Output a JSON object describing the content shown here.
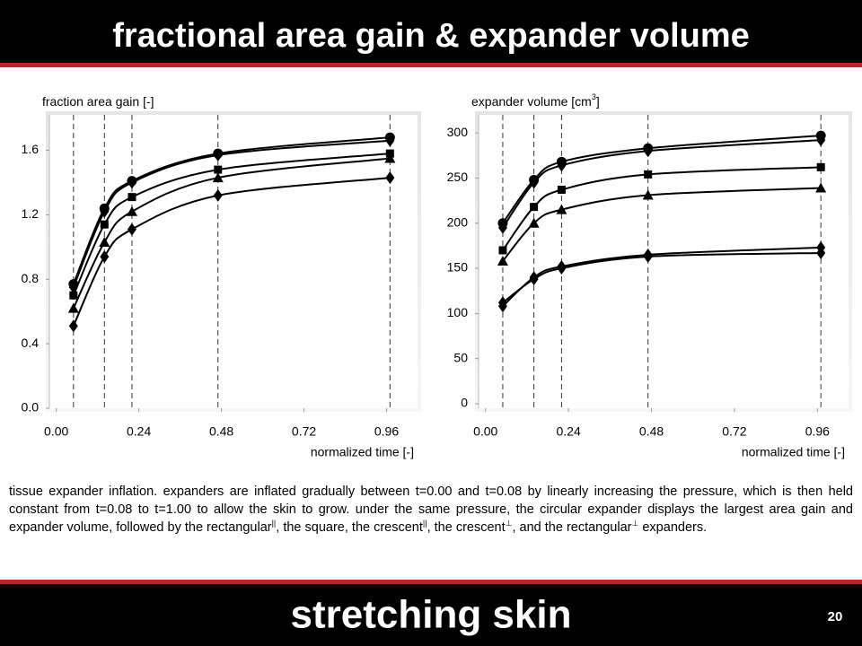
{
  "header": {
    "title": "fractional area gain & expander volume"
  },
  "chart_data": [
    {
      "type": "line",
      "y_label": [
        "fraction area gain [-]"
      ],
      "x_label": "normalized time [-]",
      "xlim": [
        -0.02,
        1.05
      ],
      "ylim": [
        0,
        1.82
      ],
      "xticks": [
        {
          "value": 0,
          "label": "0.00"
        },
        0.24,
        0.48,
        0.72,
        0.96
      ],
      "yticks": [
        {
          "value": 0,
          "label": "0.0"
        },
        0.4,
        0.8,
        1.2,
        1.6
      ],
      "x": [
        0.05,
        0.14,
        0.22,
        0.47,
        0.97
      ],
      "series": [
        {
          "marker": "circle",
          "color": "#000000",
          "values": [
            0.77,
            1.24,
            1.41,
            1.58,
            1.68
          ]
        },
        {
          "marker": "diamond",
          "color": "#000000",
          "values": [
            0.75,
            1.22,
            1.4,
            1.57,
            1.66
          ]
        },
        {
          "marker": "square",
          "color": "#000000",
          "values": [
            0.7,
            1.14,
            1.31,
            1.48,
            1.58
          ]
        },
        {
          "marker": "triangle",
          "color": "#000000",
          "values": [
            0.62,
            1.03,
            1.22,
            1.43,
            1.55
          ]
        },
        {
          "marker": "diamond",
          "color": "#000000",
          "values": [
            0.51,
            0.94,
            1.11,
            1.32,
            1.43
          ]
        }
      ]
    },
    {
      "type": "line",
      "y_label": [
        "expander volume [cm",
        "3",
        "]"
      ],
      "x_label": "normalized time [-]",
      "xlim": [
        -0.02,
        1.05
      ],
      "ylim": [
        -5,
        320
      ],
      "xticks": [
        {
          "value": 0,
          "label": "0.00"
        },
        0.24,
        0.48,
        0.72,
        0.96
      ],
      "yticks": [
        0,
        50,
        100,
        150,
        200,
        250,
        300
      ],
      "x": [
        0.05,
        0.14,
        0.22,
        0.47,
        0.97
      ],
      "series": [
        {
          "marker": "circle",
          "color": "#000000",
          "values": [
            200,
            248,
            268,
            283,
            297
          ]
        },
        {
          "marker": "diamond",
          "color": "#000000",
          "values": [
            195,
            245,
            264,
            280,
            292
          ]
        },
        {
          "marker": "square",
          "color": "#000000",
          "values": [
            170,
            218,
            237,
            254,
            262
          ]
        },
        {
          "marker": "triangle",
          "color": "#000000",
          "values": [
            158,
            200,
            215,
            231,
            239
          ]
        },
        {
          "marker": "diamond",
          "color": "#000000",
          "values": [
            108,
            140,
            152,
            165,
            173
          ]
        },
        {
          "marker": "diamond",
          "color": "#000000",
          "values": [
            112,
            138,
            150,
            163,
            167
          ]
        }
      ]
    }
  ],
  "caption": [
    "tissue expander inflation. expanders are inflated gradually between t=0.00 and t=0.08 by linearly increasing the pressure, which is then held constant from t=0.08 to t=1.00 to allow the skin to grow. under the same pressure, the circular expander displays the largest area gain and expander volume, followed by the rectangular",
    "||",
    ", the square, the crescent",
    "||",
    ", the crescent",
    "⊥",
    ", and the rectangular",
    "⊥",
    " expanders."
  ],
  "footer": {
    "title": "stretching skin",
    "page": "20"
  }
}
